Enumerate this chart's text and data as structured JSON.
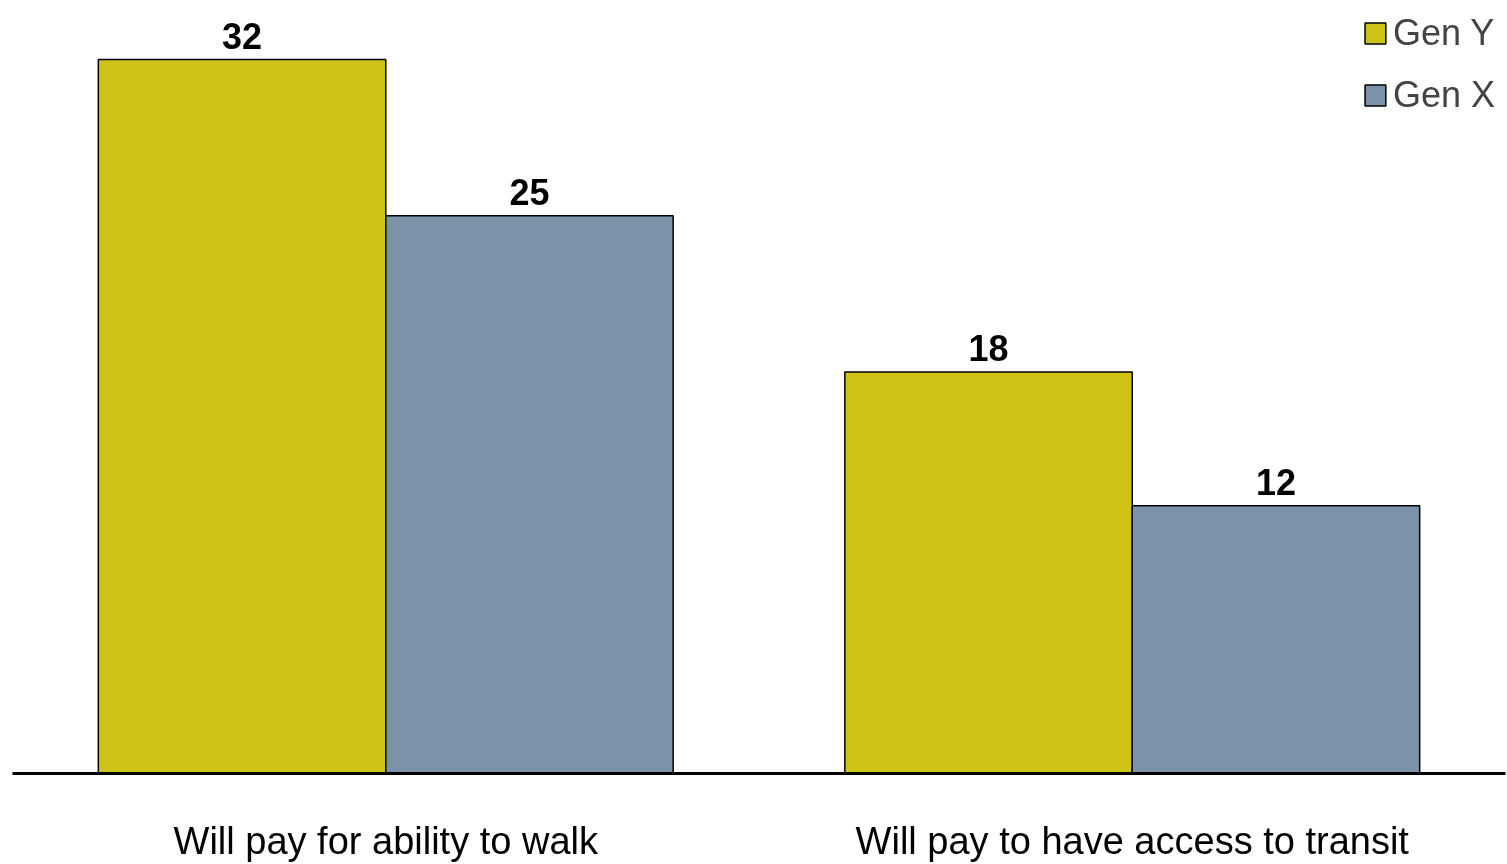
{
  "chart_data": {
    "type": "bar",
    "categories": [
      "Will pay for ability to walk",
      "Will pay to have access to transit"
    ],
    "series": [
      {
        "name": "Gen Y",
        "color": "#d0c317",
        "values": [
          32,
          18
        ]
      },
      {
        "name": "Gen X",
        "color": "#7b92a9",
        "values": [
          25,
          12
        ]
      }
    ],
    "data_labels": true,
    "tick_labels": "x",
    "legend": "top right",
    "grid": false
  }
}
